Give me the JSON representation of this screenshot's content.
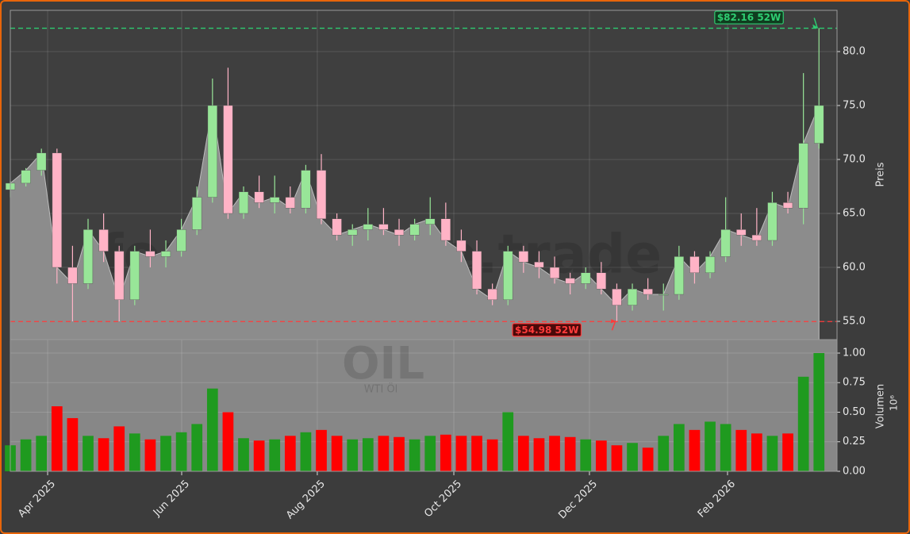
{
  "chart_data": [
    {
      "type": "candlestick",
      "watermark": "forexsignale.trade",
      "ylabel": "Preis",
      "open": [
        67.2,
        67.8,
        69,
        70.6,
        60,
        58.5,
        63.5,
        61.5,
        57,
        61.5,
        61,
        61.5,
        63.5,
        66.5,
        75,
        65,
        67,
        66,
        66.5,
        65.5,
        69,
        64.5,
        63,
        63.5,
        64,
        63.5,
        63,
        64,
        64.5,
        62.5,
        61.5,
        58,
        57,
        61.5,
        60.5,
        60,
        59,
        58.5,
        59.5,
        58,
        56.5,
        58,
        57.5,
        57.5,
        61,
        59.5,
        61,
        63.5,
        63,
        62.5,
        66,
        65.5,
        71.5
      ],
      "high": [
        68,
        69.2,
        71,
        71,
        62,
        64.5,
        65,
        62,
        62,
        63.5,
        62.5,
        64.5,
        67.5,
        77.5,
        78.5,
        67.5,
        68.5,
        68.5,
        67.5,
        69.5,
        70.5,
        65,
        64,
        65.5,
        65.5,
        64.5,
        64.5,
        66.5,
        66,
        63.5,
        62.5,
        58.5,
        62,
        62,
        61.5,
        61,
        59.5,
        60,
        60.5,
        58.5,
        58.5,
        59,
        58.5,
        62,
        61.5,
        61.5,
        66.5,
        65,
        65.5,
        67,
        67,
        78,
        82.16
      ],
      "low": [
        66.5,
        67.5,
        68.5,
        58.5,
        55,
        58,
        60.5,
        55,
        56.5,
        60,
        60,
        61,
        63,
        66,
        64.5,
        64.5,
        65.5,
        65,
        65,
        65,
        64,
        62.5,
        62,
        62.5,
        63,
        62,
        62.5,
        63,
        62,
        60.5,
        57.5,
        56.5,
        56.5,
        59.5,
        59,
        58.5,
        57.5,
        58,
        57.5,
        54.98,
        56,
        57,
        56,
        57,
        58.5,
        59,
        60.5,
        62,
        62,
        62,
        65,
        64,
        71
      ],
      "close": [
        67.8,
        69,
        70.6,
        60,
        58.5,
        63.5,
        61.5,
        57,
        61.5,
        61,
        61.5,
        63.5,
        66.5,
        75,
        65,
        67,
        66,
        66.5,
        65.5,
        69,
        64.5,
        63,
        63.5,
        64,
        63.5,
        63,
        64,
        64.5,
        62.5,
        61.5,
        58,
        57,
        61.5,
        60.5,
        60,
        59,
        58.5,
        59.5,
        58,
        56.5,
        58,
        57.5,
        57.5,
        61,
        59.5,
        61,
        63.5,
        63,
        62.5,
        66,
        65.5,
        71.5,
        75
      ],
      "up_color": "#98e698",
      "down_color": "#ffb3c6",
      "area_color": "#8c8c8c",
      "ylim": [
        53.31,
        83.82
      ],
      "yticks": [
        {
          "value": 55,
          "label": "55.0"
        },
        {
          "value": 60,
          "label": "60.0"
        },
        {
          "value": 65,
          "label": "65.0"
        },
        {
          "value": 70,
          "label": "70.0"
        },
        {
          "value": 75,
          "label": "75.0"
        },
        {
          "value": 80,
          "label": "80.0"
        }
      ],
      "grid": true,
      "annotations": [
        {
          "text": "$82.16 52W",
          "value": 82.16,
          "color": "#2ecc71"
        },
        {
          "text": "$54.98 52W",
          "value": 54.98,
          "color": "#ff3b3b"
        }
      ]
    },
    {
      "type": "bar",
      "watermark": "OIL",
      "subtitle": "WTI Öl",
      "ylabel": "Volumen",
      "scale_label": "10⁶",
      "values": [
        0.22,
        0.27,
        0.3,
        0.55,
        0.45,
        0.3,
        0.28,
        0.38,
        0.32,
        0.27,
        0.3,
        0.33,
        0.4,
        0.7,
        0.5,
        0.28,
        0.26,
        0.27,
        0.3,
        0.33,
        0.35,
        0.3,
        0.27,
        0.28,
        0.3,
        0.29,
        0.27,
        0.3,
        0.31,
        0.3,
        0.3,
        0.27,
        0.5,
        0.3,
        0.28,
        0.3,
        0.29,
        0.27,
        0.26,
        0.22,
        0.24,
        0.2,
        0.3,
        0.4,
        0.35,
        0.42,
        0.4,
        0.35,
        0.32,
        0.3,
        0.32,
        0.8,
        1.0
      ],
      "up_color": "#1f9a1f",
      "down_color": "#ff0000",
      "xlim": [
        0,
        53.16
      ],
      "xticks": [
        {
          "value": 2.4,
          "label": "Apr 2025"
        },
        {
          "value": 11.02,
          "label": "Jun 2025"
        },
        {
          "value": 19.74,
          "label": "Aug 2025"
        },
        {
          "value": 28.52,
          "label": "Oct 2025"
        },
        {
          "value": 37.24,
          "label": "Dec 2025"
        },
        {
          "value": 46.12,
          "label": "Feb 2026"
        }
      ],
      "ylim": [
        0,
        1.114
      ],
      "yticks": [
        {
          "value": 0,
          "label": "0.00"
        },
        {
          "value": 0.25,
          "label": "0.25"
        },
        {
          "value": 0.5,
          "label": "0.50"
        },
        {
          "value": 0.75,
          "label": "0.75"
        },
        {
          "value": 1,
          "label": "1.00"
        }
      ],
      "grid": true
    }
  ]
}
